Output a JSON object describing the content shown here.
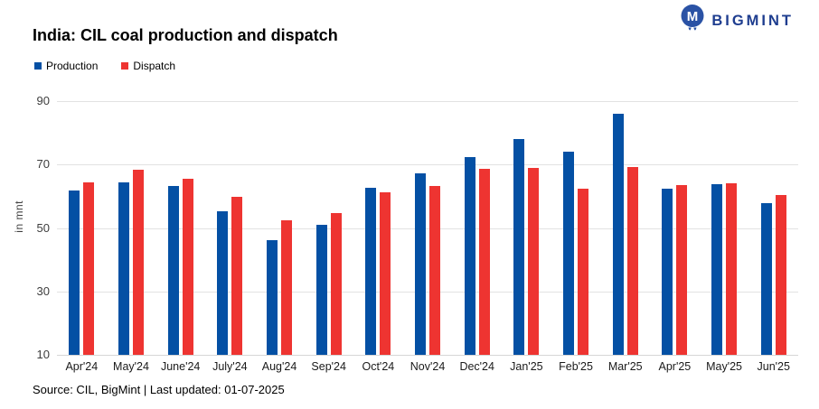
{
  "header": {
    "title": "India: CIL coal production and dispatch",
    "logo_text": "BIGMINT",
    "logo_color": "#1e3d8f"
  },
  "legend": {
    "items": [
      {
        "label": "Production",
        "color": "#0450a4"
      },
      {
        "label": "Dispatch",
        "color": "#ee3431"
      }
    ]
  },
  "chart_data": {
    "type": "bar",
    "title": "India: CIL coal production and dispatch",
    "xlabel": "",
    "ylabel": "in mnt",
    "ylim": [
      10,
      90
    ],
    "yticks": [
      90,
      70,
      50,
      30,
      10
    ],
    "grid": true,
    "legend_position": "top-left",
    "categories": [
      "Apr'24",
      "May'24",
      "June'24",
      "July'24",
      "Aug'24",
      "Sep'24",
      "Oct'24",
      "Nov'24",
      "Dec'24",
      "Jan'25",
      "Feb'25",
      "Mar'25",
      "Apr'25",
      "May'25",
      "Jun'25"
    ],
    "series": [
      {
        "name": "Production",
        "color": "#0450a4",
        "values": [
          61.8,
          64.4,
          63.2,
          55.3,
          46.2,
          51.0,
          62.7,
          67.2,
          72.5,
          78.0,
          74.2,
          86.0,
          62.3,
          63.7,
          57.8
        ]
      },
      {
        "name": "Dispatch",
        "color": "#ee3431",
        "values": [
          64.4,
          68.4,
          65.4,
          59.8,
          52.3,
          54.6,
          61.4,
          63.2,
          68.8,
          68.9,
          62.4,
          69.2,
          63.5,
          64.1,
          60.5
        ]
      }
    ]
  },
  "footer": {
    "source": "Source: CIL, BigMint | Last updated: 01-07-2025"
  }
}
